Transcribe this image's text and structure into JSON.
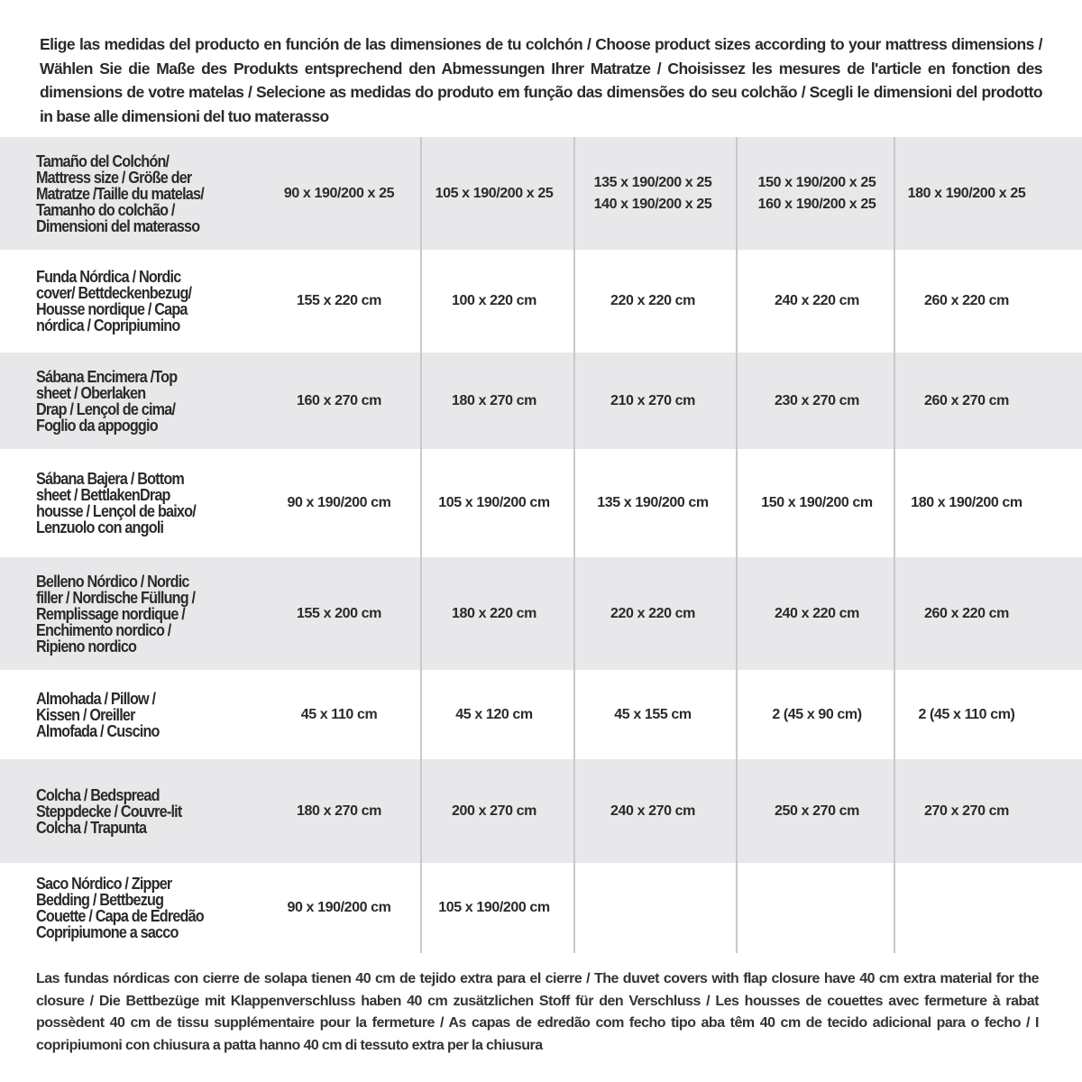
{
  "intro": "Elige las medidas del producto en función de las dimensiones de tu colchón / Choose product sizes according to your mattress dimensions / Wählen Sie die Maße des Produkts entsprechend den Abmessungen Ihrer Matratze / Choisissez les mesures de l'article en fonction des dimensions de votre matelas / Selecione as medidas do produto em função das dimensões do seu colchão / Scegli le dimensioni del prodotto in base alle dimensioni del tuo materasso",
  "colors": {
    "row_shade": "#e8e8ea",
    "divider": "#c9c9cc",
    "text": "#2a2a2a"
  },
  "rows": [
    {
      "label": [
        "Tamaño del Colchón/",
        "Mattress size / Größe der",
        "Matratze /Taille du matelas/",
        "Tamanho do colchão /",
        "Dimensioni del materasso"
      ],
      "cells": [
        [
          "90 x 190/200 x 25"
        ],
        [
          "105 x 190/200 x 25"
        ],
        [
          "135 x 190/200 x 25",
          "140 x 190/200 x 25"
        ],
        [
          "150 x 190/200 x 25",
          "160 x 190/200 x 25"
        ],
        [
          "180 x 190/200 x 25"
        ]
      ]
    },
    {
      "label": [
        "Funda Nórdica /   Nordic",
        "cover/ Bettdeckenbezug/",
        "Housse nordique  / Capa",
        "nórdica / Copripiumino"
      ],
      "cells": [
        [
          "155 x 220 cm"
        ],
        [
          "100 x 220 cm"
        ],
        [
          "220 x 220 cm"
        ],
        [
          "240 x 220 cm"
        ],
        [
          "260 x 220 cm"
        ]
      ]
    },
    {
      "label": [
        "Sábana Encimera /Top",
        "sheet / Oberlaken",
        "Drap / Lençol de cima/",
        "Foglio da appoggio"
      ],
      "cells": [
        [
          "160 x 270 cm"
        ],
        [
          "180 x 270 cm"
        ],
        [
          "210 x 270 cm"
        ],
        [
          "230 x 270 cm"
        ],
        [
          "260 x 270 cm"
        ]
      ]
    },
    {
      "label": [
        "Sábana Bajera / Bottom",
        "sheet / BettlakenDrap",
        "housse / Lençol de baixo/",
        "Lenzuolo con angoli"
      ],
      "cells": [
        [
          "90 x 190/200 cm"
        ],
        [
          "105 x 190/200 cm"
        ],
        [
          "135 x 190/200 cm"
        ],
        [
          "150 x 190/200 cm"
        ],
        [
          "180 x 190/200 cm"
        ]
      ]
    },
    {
      "label": [
        "Belleno Nórdico / Nordic",
        "filler / Nordische Füllung /",
        "Remplissage nordique /",
        "Enchimento nordico /",
        "Ripieno nordico"
      ],
      "cells": [
        [
          "155 x 200 cm"
        ],
        [
          "180 x 220 cm"
        ],
        [
          "220 x 220 cm"
        ],
        [
          "240 x 220 cm"
        ],
        [
          "260 x 220 cm"
        ]
      ]
    },
    {
      "label": [
        "Almohada  / Pillow /",
        "Kissen / Oreiller",
        "Almofada / Cuscino"
      ],
      "cells": [
        [
          "45 x 110 cm"
        ],
        [
          "45 x 120 cm"
        ],
        [
          "45 x 155 cm"
        ],
        [
          "2 (45 x 90 cm)"
        ],
        [
          "2 (45 x 110 cm)"
        ]
      ]
    },
    {
      "label": [
        "Colcha / Bedspread",
        "Steppdecke / Couvre-lit",
        "Colcha / Trapunta"
      ],
      "cells": [
        [
          "180 x 270 cm"
        ],
        [
          "200 x 270 cm"
        ],
        [
          "240 x 270 cm"
        ],
        [
          "250 x 270 cm"
        ],
        [
          "270 x 270 cm"
        ]
      ]
    },
    {
      "label": [
        "Saco Nórdico / Zipper",
        "Bedding / Bettbezug",
        "Couette  / Capa de Edredão",
        "Copripiumone a sacco"
      ],
      "cells": [
        [
          "90 x 190/200 cm"
        ],
        [
          "105 x 190/200 cm"
        ],
        [],
        [],
        []
      ]
    }
  ],
  "footer": "Las fundas nórdicas con cierre de solapa tienen 40 cm de tejido extra para el cierre  / The duvet covers with flap closure have 40 cm extra material for the closure / Die Bettbezüge mit Klappenverschluss haben 40 cm zusätzlichen Stoff für den Verschluss / Les housses de couettes avec fermeture à rabat possèdent 40 cm de tissu supplémentaire pour la fermeture / As capas de edredão com fecho tipo aba têm 40 cm de tecido adicional para o fecho / I copripiumoni con chiusura a patta hanno 40 cm di tessuto extra per la chiusura"
}
